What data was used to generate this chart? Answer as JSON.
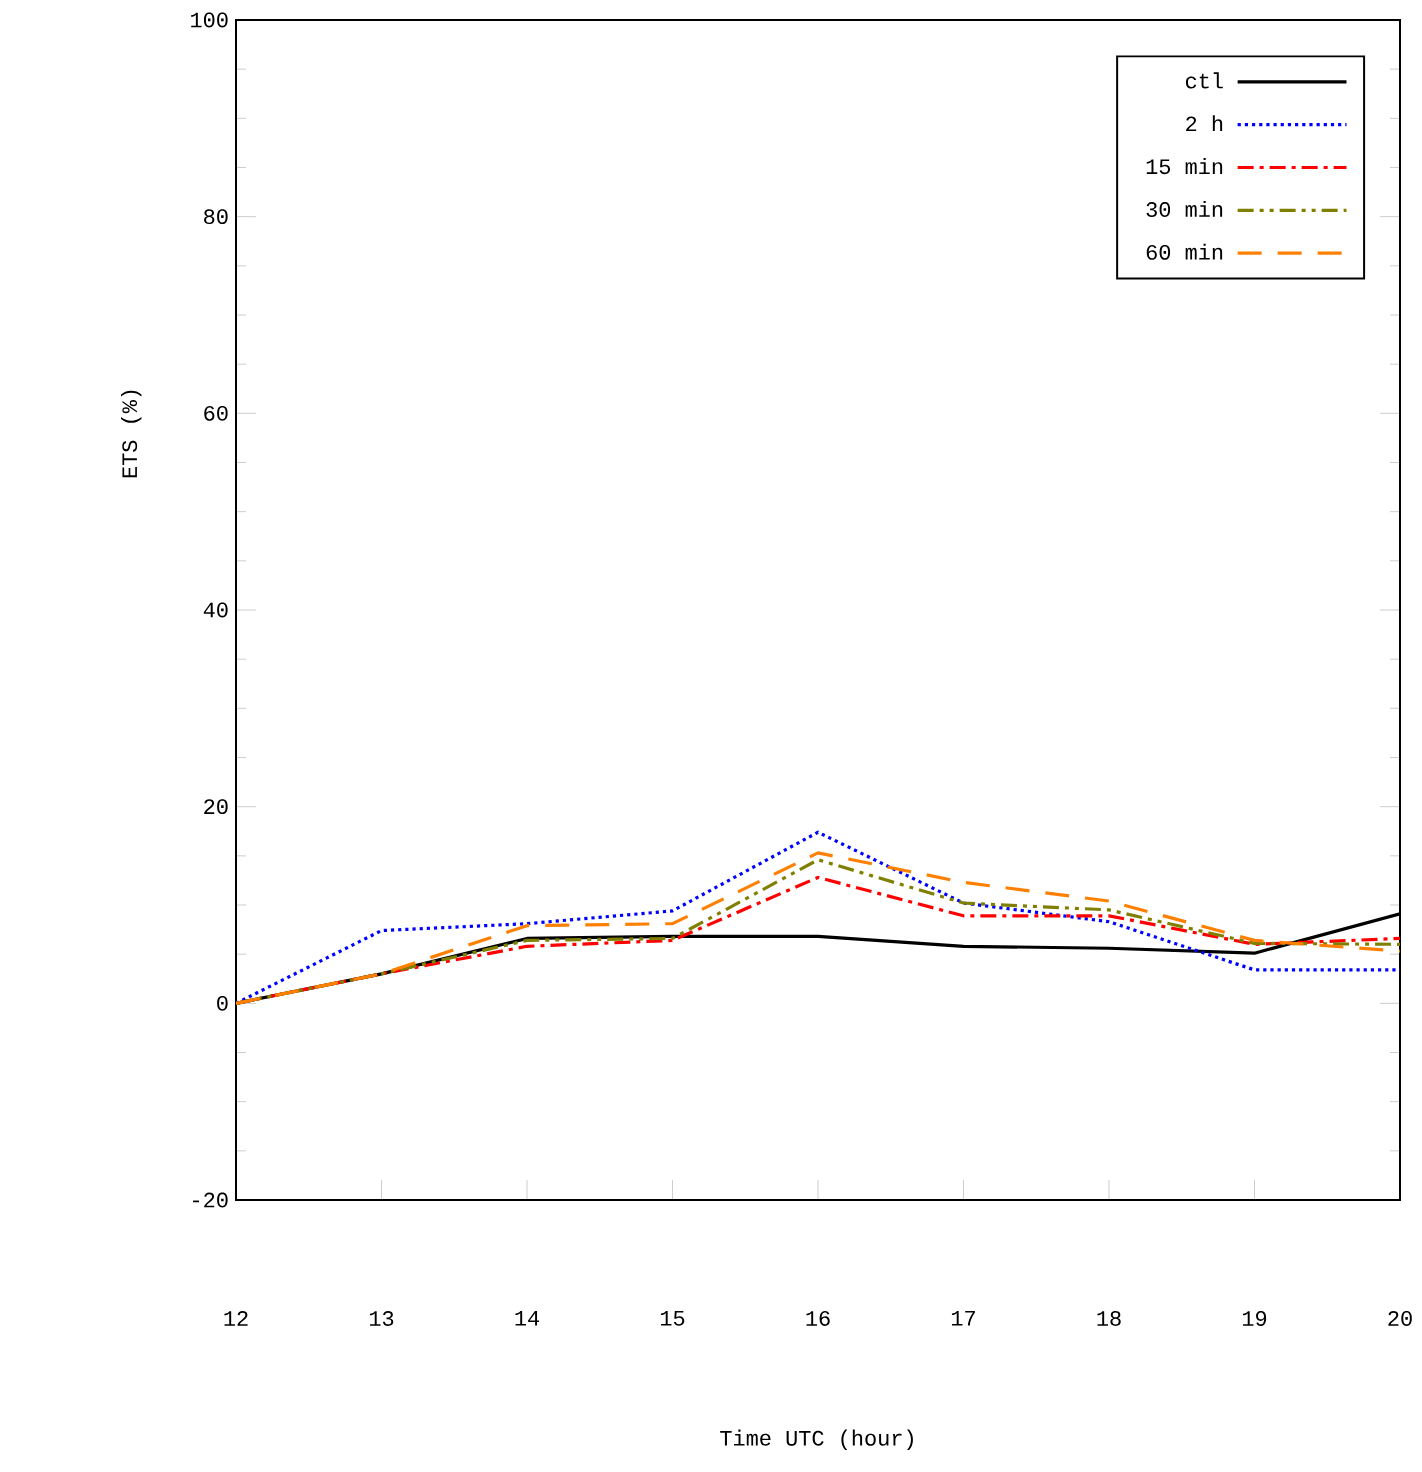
{
  "chart_data": {
    "type": "line",
    "xlabel": "Time UTC (hour)",
    "ylabel": "ETS (%)",
    "x": [
      12,
      13,
      14,
      15,
      16,
      17,
      18,
      19,
      20
    ],
    "xlim": [
      12,
      20
    ],
    "xticks": [
      12,
      13,
      14,
      15,
      16,
      17,
      18,
      19,
      20
    ],
    "ylim": [
      -20,
      100
    ],
    "yticks": [
      -20,
      0,
      20,
      40,
      60,
      80,
      100
    ],
    "grid": false,
    "legend": "top right",
    "marker": "none",
    "series": [
      {
        "name": "ctl",
        "color": "#000000",
        "line_style": "solid",
        "values": [
          0,
          3.0,
          6.6,
          6.8,
          6.8,
          5.8,
          5.6,
          5.1,
          9.1
        ]
      },
      {
        "name": "2 h",
        "color": "#0000ff",
        "line_style": "dotted",
        "values": [
          0,
          7.4,
          8.1,
          9.4,
          17.4,
          10.2,
          8.3,
          3.4,
          3.4
        ]
      },
      {
        "name": "15 min",
        "color": "#ff0000",
        "line_style": "dashdot",
        "values": [
          0,
          3.0,
          5.8,
          6.4,
          12.8,
          8.9,
          8.9,
          6.0,
          6.6
        ]
      },
      {
        "name": "30 min",
        "color": "#808000",
        "line_style": "dashdotdot",
        "values": [
          0,
          3.0,
          6.4,
          6.6,
          14.6,
          10.2,
          9.5,
          6.1,
          6.0
        ]
      },
      {
        "name": "60 min",
        "color": "#ff8000",
        "line_style": "dashed",
        "values": [
          0,
          3.0,
          7.9,
          8.1,
          15.3,
          12.3,
          10.4,
          6.4,
          5.3
        ]
      }
    ]
  }
}
